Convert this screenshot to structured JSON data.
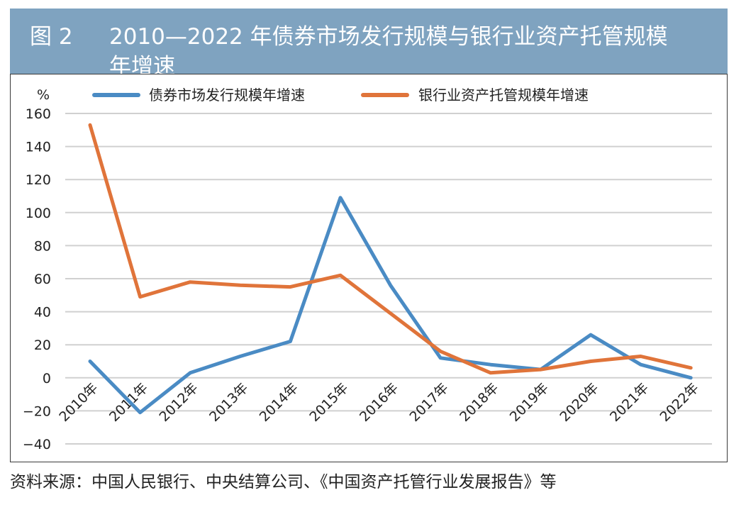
{
  "header": {
    "figure_label": "图 2",
    "title_line1": "2010—2022 年债券市场发行规模与银行业资产托管规模",
    "title_line2": "年增速"
  },
  "source": "资料来源：中国人民银行、中央结算公司、《中国资产托管行业发展报告》等",
  "chart_data": {
    "type": "line",
    "title": "2010—2022 年债券市场发行规模与银行业资产托管规模年增速",
    "ylabel": "%",
    "xlabel": "",
    "ylim": [
      -40,
      160
    ],
    "yticks": [
      160,
      140,
      120,
      100,
      80,
      60,
      40,
      20,
      0,
      -20,
      -40
    ],
    "ytick_labels": [
      "160",
      "140",
      "120",
      "100",
      "80",
      "60",
      "40",
      "20",
      "0",
      "−20",
      "−40"
    ],
    "grid": true,
    "legend_position": "top",
    "categories": [
      "2010年",
      "2011年",
      "2012年",
      "2013年",
      "2014年",
      "2015年",
      "2016年",
      "2017年",
      "2018年",
      "2019年",
      "2020年",
      "2021年",
      "2022年"
    ],
    "series": [
      {
        "name": "债券市场发行规模年增速",
        "color": "#4a8bc4",
        "values": [
          10,
          -21,
          3,
          13,
          22,
          109,
          56,
          12,
          8,
          5,
          26,
          8,
          0
        ]
      },
      {
        "name": "银行业资产托管规模年增速",
        "color": "#e0743a",
        "values": [
          153,
          49,
          58,
          56,
          55,
          62,
          39,
          16,
          3,
          5,
          10,
          13,
          6
        ]
      }
    ]
  }
}
